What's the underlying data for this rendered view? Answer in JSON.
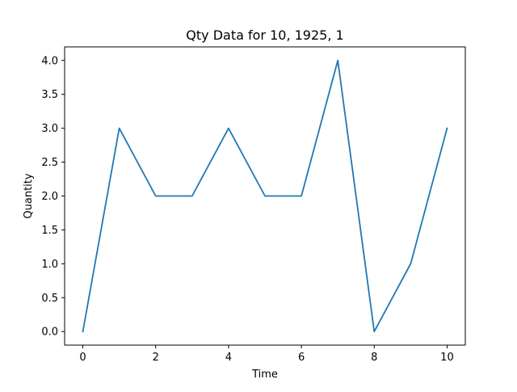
{
  "chart_data": {
    "type": "line",
    "title": "Qty Data for 10, 1925, 1",
    "xlabel": "Time",
    "ylabel": "Quantity",
    "x": [
      0,
      1,
      2,
      3,
      4,
      5,
      6,
      7,
      8,
      9,
      10
    ],
    "series": [
      {
        "values": [
          0,
          3,
          2,
          2,
          3,
          2,
          2,
          4,
          0,
          1,
          3
        ],
        "color": "#1f77b4"
      }
    ],
    "xlim": [
      -0.5,
      10.5
    ],
    "ylim": [
      -0.2,
      4.2
    ],
    "xticks": [
      0,
      2,
      4,
      6,
      8,
      10
    ],
    "xtick_labels": [
      "0",
      "2",
      "4",
      "6",
      "8",
      "10"
    ],
    "yticks": [
      0,
      0.5,
      1,
      1.5,
      2,
      2.5,
      3,
      3.5,
      4
    ],
    "ytick_labels": [
      "0.0",
      "0.5",
      "1.0",
      "1.5",
      "2.0",
      "2.5",
      "3.0",
      "3.5",
      "4.0"
    ],
    "grid": false,
    "legend": null
  }
}
